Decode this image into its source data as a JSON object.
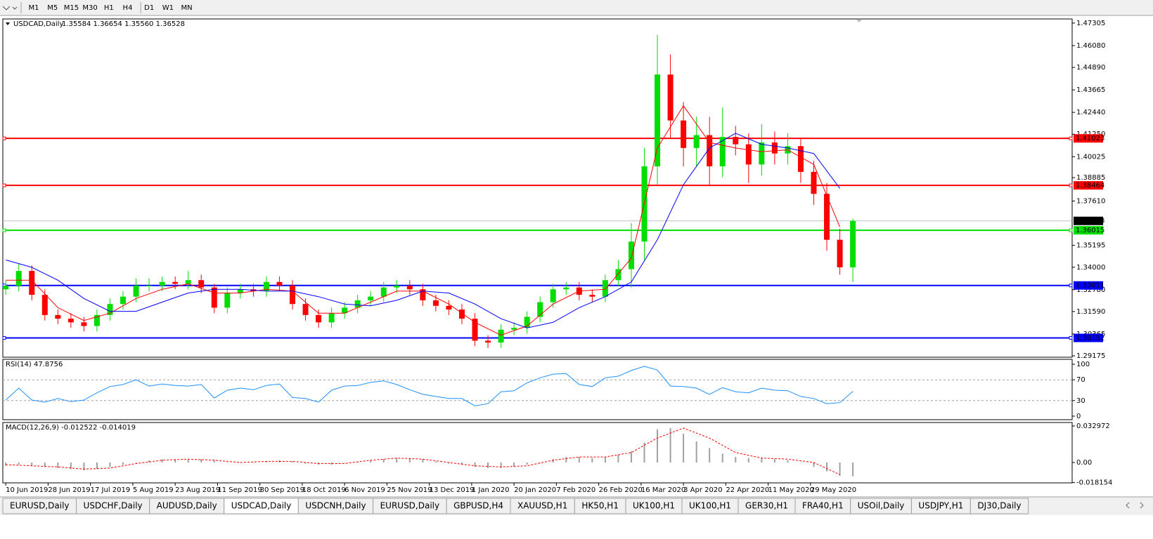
{
  "toolbar": {
    "timeframes": [
      "M1",
      "M5",
      "M15",
      "M30",
      "H1",
      "H4",
      "D1",
      "W1",
      "MN"
    ]
  },
  "chart_data": [
    {
      "type": "candlestick",
      "title": "USDCAD,Daily",
      "ohlc": "1.35584 1.36654 1.35560 1.36528",
      "up_color": "#00dd00",
      "down_color": "#ff0000",
      "x": [
        0,
        4,
        8,
        12,
        16,
        20,
        24,
        28,
        32,
        36,
        40,
        44,
        48,
        52,
        56,
        60,
        64,
        68,
        72,
        76,
        80,
        84,
        88,
        92,
        96,
        100,
        104,
        108,
        112,
        116,
        120,
        124,
        128,
        132,
        136,
        140,
        144,
        148,
        152,
        156,
        160,
        164,
        168,
        172,
        176,
        180,
        184,
        188,
        192,
        196,
        200,
        204,
        208,
        212,
        216,
        220,
        224,
        228,
        232,
        236,
        240,
        244,
        248,
        252,
        256,
        260
      ],
      "open": [
        1.328,
        1.33,
        1.338,
        1.325,
        1.314,
        1.312,
        1.31,
        1.308,
        1.314,
        1.32,
        1.324,
        1.33,
        1.33,
        1.332,
        1.331,
        1.333,
        1.329,
        1.318,
        1.326,
        1.328,
        1.327,
        1.332,
        1.33,
        1.32,
        1.314,
        1.31,
        1.315,
        1.318,
        1.322,
        1.324,
        1.329,
        1.33,
        1.328,
        1.322,
        1.319,
        1.317,
        1.312,
        1.3,
        1.299,
        1.306,
        1.307,
        1.313,
        1.321,
        1.328,
        1.329,
        1.325,
        1.324,
        1.333,
        1.339,
        1.354,
        1.395,
        1.445,
        1.42,
        1.405,
        1.412,
        1.395,
        1.411,
        1.407,
        1.396,
        1.408,
        1.402,
        1.406,
        1.392,
        1.38,
        1.355,
        1.34
      ],
      "high": [
        1.333,
        1.342,
        1.341,
        1.328,
        1.317,
        1.315,
        1.313,
        1.317,
        1.323,
        1.327,
        1.334,
        1.334,
        1.335,
        1.335,
        1.338,
        1.336,
        1.331,
        1.329,
        1.331,
        1.331,
        1.335,
        1.335,
        1.333,
        1.323,
        1.317,
        1.318,
        1.321,
        1.325,
        1.327,
        1.332,
        1.333,
        1.333,
        1.331,
        1.325,
        1.322,
        1.32,
        1.315,
        1.303,
        1.309,
        1.31,
        1.316,
        1.324,
        1.331,
        1.332,
        1.332,
        1.328,
        1.336,
        1.344,
        1.364,
        1.405,
        1.4667,
        1.456,
        1.43,
        1.422,
        1.422,
        1.427,
        1.417,
        1.413,
        1.418,
        1.414,
        1.413,
        1.41,
        1.398,
        1.386,
        1.361,
        1.36654
      ],
      "low": [
        1.325,
        1.327,
        1.322,
        1.311,
        1.309,
        1.307,
        1.305,
        1.305,
        1.311,
        1.317,
        1.321,
        1.327,
        1.327,
        1.328,
        1.328,
        1.326,
        1.315,
        1.315,
        1.323,
        1.324,
        1.324,
        1.327,
        1.317,
        1.311,
        1.307,
        1.307,
        1.312,
        1.315,
        1.319,
        1.321,
        1.326,
        1.325,
        1.319,
        1.316,
        1.314,
        1.309,
        1.297,
        1.296,
        1.296,
        1.303,
        1.304,
        1.31,
        1.318,
        1.325,
        1.322,
        1.321,
        1.321,
        1.33,
        1.329,
        1.344,
        1.385,
        1.41,
        1.395,
        1.395,
        1.385,
        1.389,
        1.401,
        1.386,
        1.39,
        1.396,
        1.396,
        1.386,
        1.374,
        1.349,
        1.336,
        1.332
      ],
      "close": [
        1.33,
        1.338,
        1.325,
        1.314,
        1.312,
        1.31,
        1.308,
        1.314,
        1.32,
        1.324,
        1.33,
        1.33,
        1.332,
        1.331,
        1.333,
        1.329,
        1.318,
        1.326,
        1.328,
        1.327,
        1.332,
        1.33,
        1.32,
        1.314,
        1.31,
        1.315,
        1.318,
        1.322,
        1.324,
        1.329,
        1.33,
        1.328,
        1.322,
        1.319,
        1.317,
        1.312,
        1.3,
        1.299,
        1.306,
        1.307,
        1.313,
        1.321,
        1.328,
        1.329,
        1.325,
        1.324,
        1.333,
        1.339,
        1.354,
        1.395,
        1.445,
        1.42,
        1.405,
        1.412,
        1.395,
        1.411,
        1.407,
        1.396,
        1.408,
        1.402,
        1.406,
        1.392,
        1.38,
        1.355,
        1.34,
        1.36528
      ],
      "lines": [
        {
          "color": "#ff0000",
          "x": [
            0,
            8,
            16,
            24,
            32,
            40,
            48,
            56,
            64,
            72,
            80,
            88,
            96,
            104,
            112,
            120,
            128,
            136,
            144,
            152,
            160,
            168,
            176,
            184,
            192,
            200,
            208,
            216,
            224,
            232,
            240,
            248,
            256
          ],
          "values": [
            1.333,
            1.333,
            1.318,
            1.311,
            1.315,
            1.323,
            1.328,
            1.331,
            1.326,
            1.326,
            1.328,
            1.327,
            1.315,
            1.315,
            1.321,
            1.327,
            1.327,
            1.32,
            1.31,
            1.303,
            1.308,
            1.32,
            1.327,
            1.328,
            1.345,
            1.405,
            1.428,
            1.408,
            1.405,
            1.403,
            1.404,
            1.396,
            1.362
          ]
        },
        {
          "color": "#0000ff",
          "x": [
            0,
            8,
            16,
            24,
            32,
            40,
            48,
            56,
            64,
            72,
            80,
            88,
            96,
            104,
            112,
            120,
            128,
            136,
            144,
            152,
            160,
            168,
            176,
            184,
            192,
            200,
            208,
            216,
            224,
            232,
            240,
            248,
            256
          ],
          "values": [
            1.344,
            1.34,
            1.333,
            1.323,
            1.316,
            1.316,
            1.321,
            1.326,
            1.328,
            1.328,
            1.327,
            1.327,
            1.324,
            1.32,
            1.319,
            1.322,
            1.327,
            1.326,
            1.32,
            1.312,
            1.307,
            1.31,
            1.318,
            1.324,
            1.332,
            1.355,
            1.385,
            1.405,
            1.413,
            1.407,
            1.405,
            1.402,
            1.383
          ]
        }
      ],
      "levels": [
        {
          "value": 1.41023,
          "color": "#ff0000"
        },
        {
          "value": 1.38464,
          "color": "#ff0000"
        },
        {
          "value": 1.36015,
          "color": "#00dd00"
        },
        {
          "value": 1.33011,
          "color": "#0000ff"
        },
        {
          "value": 1.30152,
          "color": "#0000ff"
        }
      ],
      "current": {
        "value": 1.36528,
        "color": "#c0c0c0"
      },
      "xlim": [
        -0.9,
        327.3
      ],
      "ylim": [
        1.291,
        1.4753
      ],
      "yticks": [
        1.47305,
        {
          "value": 1.4608,
          "label": "1.46080"
        },
        {
          "value": 1.4489,
          "label": "1.44890"
        },
        1.43665,
        {
          "value": 1.4244,
          "label": "1.42440"
        },
        {
          "value": 1.4125,
          "label": "1.41250"
        },
        1.40025,
        1.38885,
        {
          "value": 1.3761,
          "label": "1.37610"
        },
        1.35195,
        {
          "value": 1.34,
          "label": "1.34000"
        },
        {
          "value": 1.3278,
          "label": "1.32780"
        },
        {
          "value": 1.3159,
          "label": "1.31590"
        },
        1.30365,
        1.29175
      ],
      "xticks": [
        {
          "value": 0,
          "label": "10 Jun 2019"
        },
        {
          "value": 13,
          "label": "28 Jun 2019"
        },
        {
          "value": 26,
          "label": "17 Jul 2019"
        },
        {
          "value": 39,
          "label": "5 Aug 2019"
        },
        {
          "value": 52,
          "label": "23 Aug 2019"
        },
        {
          "value": 65,
          "label": "11 Sep 2019"
        },
        {
          "value": 78,
          "label": "30 Sep 2019"
        },
        {
          "value": 91,
          "label": "18 Oct 2019"
        },
        {
          "value": 104,
          "label": "6 Nov 2019"
        },
        {
          "value": 117,
          "label": "25 Nov 2019"
        },
        {
          "value": 130,
          "label": "13 Dec 2019"
        },
        {
          "value": 143,
          "label": "1 Jan 2020"
        },
        {
          "value": 156,
          "label": "20 Jan 2020"
        },
        {
          "value": 169,
          "label": "7 Feb 2020"
        },
        {
          "value": 182,
          "label": "26 Feb 2020"
        },
        {
          "value": 195,
          "label": "16 Mar 2020"
        },
        {
          "value": 208,
          "label": "3 Apr 2020"
        },
        {
          "value": 221,
          "label": "22 Apr 2020"
        },
        {
          "value": 234,
          "label": "11 May 2020"
        },
        {
          "value": 247,
          "label": "29 May 2020"
        }
      ]
    },
    {
      "type": "line",
      "title": "RSI(14) 47.8756",
      "color": "#1e90ff",
      "x": [
        0,
        4,
        8,
        12,
        16,
        20,
        24,
        28,
        32,
        36,
        40,
        44,
        48,
        52,
        56,
        60,
        64,
        68,
        72,
        76,
        80,
        84,
        88,
        92,
        96,
        100,
        104,
        108,
        112,
        116,
        120,
        124,
        128,
        132,
        136,
        140,
        144,
        148,
        152,
        156,
        160,
        164,
        168,
        172,
        176,
        180,
        184,
        188,
        192,
        196,
        200,
        204,
        208,
        212,
        216,
        220,
        224,
        228,
        232,
        236,
        240,
        244,
        248,
        252,
        256,
        260
      ],
      "values": [
        31,
        54,
        31,
        27,
        34,
        28,
        31,
        45,
        57,
        61,
        70,
        58,
        62,
        59,
        58,
        61,
        35,
        50,
        54,
        51,
        59,
        62,
        36,
        34,
        27,
        50,
        58,
        59,
        65,
        68,
        61,
        51,
        42,
        38,
        34,
        34,
        20,
        24,
        47,
        49,
        64,
        74,
        81,
        82,
        61,
        57,
        74,
        77,
        88,
        96,
        89,
        58,
        57,
        54,
        42,
        55,
        47,
        45,
        54,
        50,
        49,
        38,
        34,
        24,
        26,
        47.88
      ],
      "levels": [
        70,
        30
      ],
      "xlim": [
        -0.9,
        327.3
      ],
      "ylim": [
        -6.8,
        109.5
      ],
      "yticks": [
        100,
        70,
        30,
        0
      ]
    },
    {
      "type": "macd",
      "title": "MACD(12,26,9) -0.012522 -0.014019",
      "color": "#a0a0a0",
      "signal_color": "#ff0000",
      "x": [
        0,
        4,
        8,
        12,
        16,
        20,
        24,
        28,
        32,
        36,
        40,
        44,
        48,
        52,
        56,
        60,
        64,
        68,
        72,
        76,
        80,
        84,
        88,
        92,
        96,
        100,
        104,
        108,
        112,
        116,
        120,
        124,
        128,
        132,
        136,
        140,
        144,
        148,
        152,
        156,
        160,
        164,
        168,
        172,
        176,
        180,
        184,
        188,
        192,
        196,
        200,
        204,
        208,
        212,
        216,
        220,
        224,
        228,
        232,
        236,
        240,
        244,
        248,
        252,
        256,
        260
      ],
      "histogram": [
        -0.003,
        -0.002,
        -0.003,
        -0.004,
        -0.005,
        -0.006,
        -0.007,
        -0.006,
        -0.004,
        -0.002,
        0,
        0.002,
        0.003,
        0.003,
        0.003,
        0.003,
        0.002,
        0,
        0,
        0,
        0.001,
        0.002,
        0.001,
        -0.001,
        -0.002,
        -0.002,
        0,
        0.001,
        0.002,
        0.003,
        0.004,
        0.004,
        0.003,
        0.001,
        -0.001,
        -0.002,
        -0.004,
        -0.005,
        -0.005,
        -0.004,
        -0.002,
        0,
        0.003,
        0.005,
        0.005,
        0.004,
        0.005,
        0.007,
        0.01,
        0.018,
        0.03,
        0.031,
        0.026,
        0.019,
        0.013,
        0.008,
        0.005,
        0.004,
        0.004,
        0.003,
        0.002,
        0,
        -0.004,
        -0.008,
        -0.012,
        -0.012522
      ],
      "signal_x": [
        0,
        8,
        16,
        24,
        32,
        40,
        48,
        56,
        64,
        72,
        80,
        88,
        96,
        104,
        112,
        120,
        128,
        136,
        144,
        152,
        160,
        168,
        176,
        184,
        192,
        200,
        208,
        216,
        224,
        232,
        240,
        248,
        256
      ],
      "signal": [
        -0.002,
        -0.003,
        -0.004,
        -0.006,
        -0.005,
        -0.001,
        0.002,
        0.003,
        0.002,
        0,
        0.001,
        0.001,
        -0.001,
        -0.001,
        0.002,
        0.004,
        0.003,
        0,
        -0.003,
        -0.004,
        -0.003,
        0.002,
        0.005,
        0.005,
        0.009,
        0.022,
        0.031,
        0.022,
        0.009,
        0.004,
        0.003,
        0,
        -0.011
      ],
      "xlim": [
        -0.9,
        327.3
      ],
      "ylim": [
        -0.0184,
        0.0361
      ],
      "yticks": [
        0.032972,
        {
          "value": 0,
          "label": "0.00"
        },
        -0.018154
      ]
    }
  ],
  "tabs": [
    "EURUSD,Daily",
    "USDCHF,Daily",
    "AUDUSD,Daily",
    "USDCAD,Daily",
    "USDCNH,Daily",
    "EURUSD,Daily",
    "GBPUSD,H4",
    "XAUUSD,H1",
    "HK50,H1",
    "UK100,H1",
    "UK100,H1",
    "GER30,H1",
    "FRA40,H1",
    "USOil,Daily",
    "USDJPY,H1",
    "DJ30,Daily"
  ]
}
